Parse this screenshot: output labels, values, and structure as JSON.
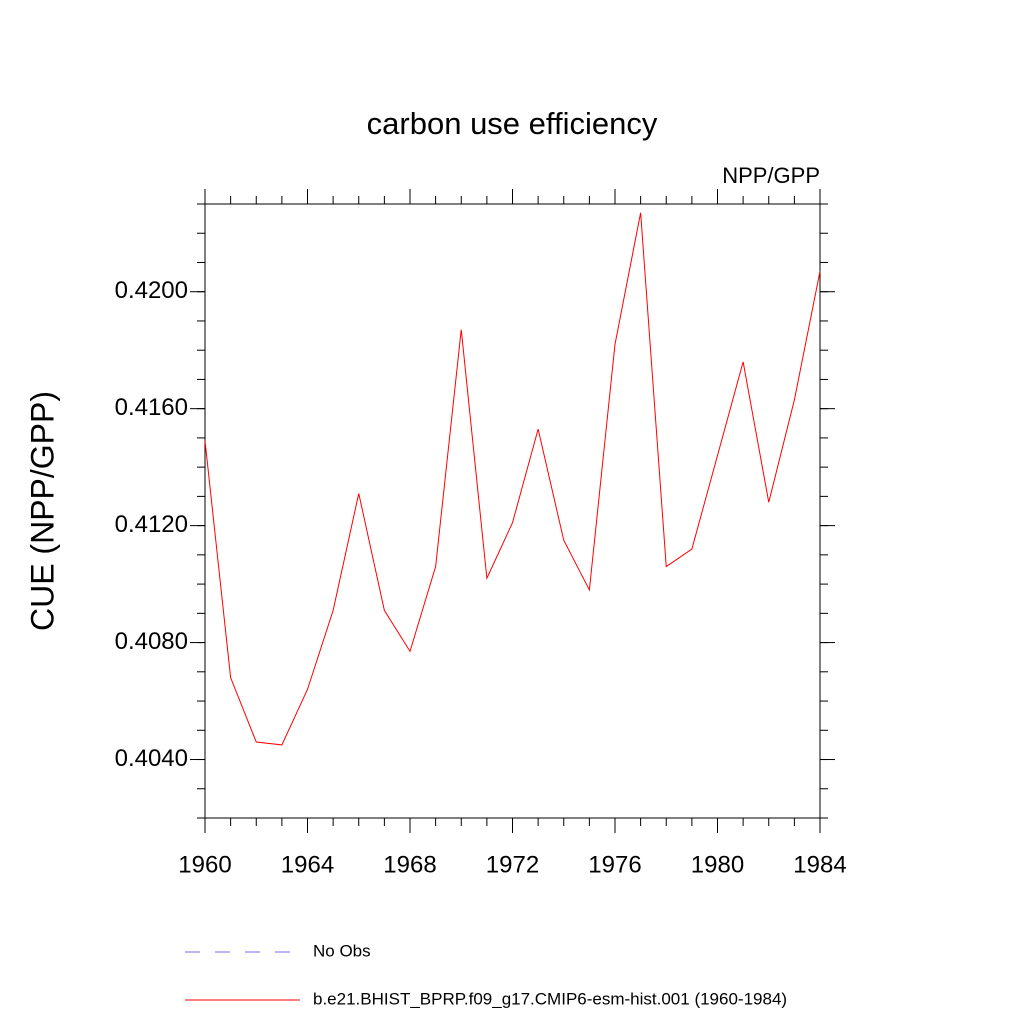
{
  "chart_data": {
    "type": "line",
    "title": "carbon use efficiency",
    "subtitle": "NPP/GPP",
    "y_label": "CUE  (NPP/GPP)",
    "x": [
      1960,
      1961,
      1962,
      1963,
      1964,
      1965,
      1966,
      1967,
      1968,
      1969,
      1970,
      1971,
      1972,
      1973,
      1974,
      1975,
      1976,
      1977,
      1978,
      1979,
      1980,
      1981,
      1982,
      1983,
      1984
    ],
    "series": [
      {
        "name": "b.e21.BHIST_BPRP.f09_g17.CMIP6-esm-hist.001 (1960-1984)",
        "color": "#ff0000",
        "values": [
          0.4149,
          0.4068,
          0.4046,
          0.4045,
          0.4064,
          0.4091,
          0.4131,
          0.4091,
          0.4077,
          0.4106,
          0.4187,
          0.4102,
          0.4121,
          0.4153,
          0.4115,
          0.4098,
          0.4182,
          0.4227,
          0.4106,
          0.4112,
          0.4144,
          0.4176,
          0.4128,
          0.4163,
          0.4207
        ]
      }
    ],
    "legend_entries": [
      {
        "name": "No Obs",
        "color": "#7b68ee",
        "style": "dashed"
      }
    ],
    "xlim": [
      1960,
      1984
    ],
    "xticks": [
      1960,
      1964,
      1968,
      1972,
      1976,
      1980,
      1984
    ],
    "ylim": [
      0.402,
      0.423
    ],
    "yticks": [
      {
        "value": 0.404,
        "label": "0.4040"
      },
      {
        "value": 0.408,
        "label": "0.4080"
      },
      {
        "value": 0.412,
        "label": "0.4120"
      },
      {
        "value": 0.416,
        "label": "0.4160"
      },
      {
        "value": 0.42,
        "label": "0.4200"
      }
    ],
    "yminorticks": [
      0.402,
      0.403,
      0.404,
      0.405,
      0.406,
      0.407,
      0.408,
      0.409,
      0.41,
      0.411,
      0.412,
      0.413,
      0.414,
      0.415,
      0.416,
      0.417,
      0.418,
      0.419,
      0.42,
      0.421,
      0.422,
      0.423
    ],
    "grid": false
  }
}
